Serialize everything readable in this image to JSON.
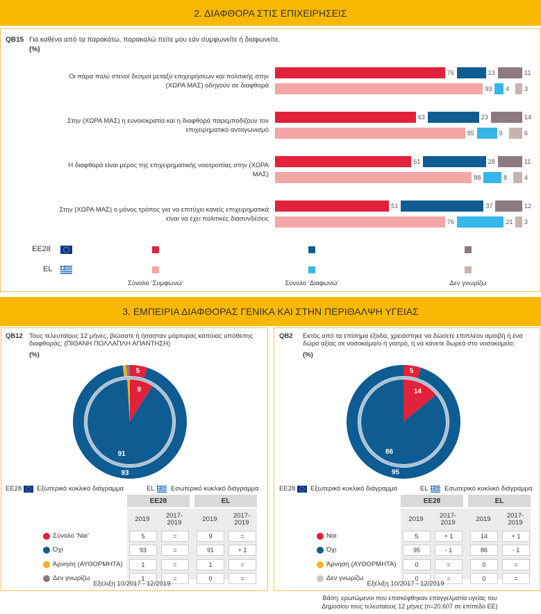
{
  "section_titles": [
    "2. ΔΙΑΦΘΟΡΑ ΣΤΙΣ ΕΠΙΧΕΙΡΗΣΕΙΣ",
    "3. ΕΜΠΕΙΡΙΑ ΔΙΑΦΘΟΡΑΣ ΓΕΝΙΚΑ ΚΑΙ ΣΤΗΝ ΠΕΡΙΘΑΛΨΗ ΥΓΕΙΑΣ"
  ],
  "base_note": "Βάση: ερωτώμενοι που επισκέφθηκαν επαγγελματία υγείας του Δημοσίου τους τελευταίους 12 μήνες (n=20.607 σε επίπεδο ΕΕ)",
  "chart_data": [
    {
      "type": "bar",
      "orientation": "horizontal",
      "question_code": "QB15",
      "question": "Για καθένα από τα παρακάτω, παρακαλώ πείτε μου εάν συμφωνείτε ή διαφωνείτε.",
      "unit_label": "(%)",
      "categories": [
        "Οι πάρα πολύ στενοί δεσμοί μεταξύ επιχειρήσεων και πολιτικής στην (ΧΩΡΑ ΜΑΣ) οδηγούν σε διαφθορά",
        "Στην (ΧΩΡΑ ΜΑΣ) η ευνοιοκρατία και η διαφθορά παρεμποδίζουν τον επιχειρηματικό ανταγωνισμό",
        "Η διαφθορά είναι μέρος της επιχειρηματικής νοοτροπίας στην (ΧΩΡΑ ΜΑΣ)",
        "Στην (ΧΩΡΑ ΜΑΣ) ο μόνος τρόπος για να επιτύχει κανείς επιχειρηματικά είναι να έχει πολιτικές διασυνδέσεις"
      ],
      "groups": [
        "EE28",
        "EL"
      ],
      "series": [
        {
          "name": "Σύνολο ‘Συμφωνώ’",
          "colors": [
            "#e2213a",
            "#f4a6a6"
          ],
          "values": [
            [
              76,
              63,
              61,
              51
            ],
            [
              93,
              85,
              88,
              76
            ]
          ]
        },
        {
          "name": "Σύνολο ‘Διαφωνώ’",
          "colors": [
            "#0e5c91",
            "#35b7ea"
          ],
          "values": [
            [
              13,
              23,
              28,
              37
            ],
            [
              4,
              9,
              8,
              21
            ]
          ]
        },
        {
          "name": "Δεν γνωρίζω",
          "colors": [
            "#8c7a7e",
            "#c6b4b0"
          ],
          "values": [
            [
              11,
              14,
              11,
              12
            ],
            [
              3,
              6,
              4,
              3
            ]
          ]
        }
      ]
    },
    {
      "type": "pie",
      "question_code": "QB12",
      "question": "Τους τελευταίους 12 μήνες, βιώσατε ή ήσασταν μάρτυρας κάποιας υπόθεσης διαφθοράς; (ΠΙΘΑΝΗ ΠΟΛΛΑΠΛΗ ΑΠΑΝΤΗΣΗ)",
      "unit_label": "(%)",
      "categories": [
        "Σύνολο ‘Ναι’",
        "Όχι",
        "Άρνηση (ΑΥΘΟΡΜΗΤΑ)",
        "Δεν γνωρίζω"
      ],
      "colors": [
        "#e2213a",
        "#0e5c91",
        "#f0b323",
        "#8c7a7e"
      ],
      "table_columns": [
        "2019",
        "2017-2019"
      ],
      "series": [
        {
          "name": "EE28",
          "description": "Εξωτερικό κυκλικό διάγραμμα",
          "values": [
            5,
            93,
            1,
            1
          ],
          "changes": [
            "=",
            "=",
            "=",
            "="
          ]
        },
        {
          "name": "EL",
          "description": "Εσωτερικό κυκλικό διάγραμμα",
          "values": [
            9,
            91,
            1,
            0
          ],
          "changes": [
            "=",
            "+ 1",
            "=",
            "="
          ]
        }
      ],
      "footnote": "Εξέλιξη 10/2017 - 12/2019"
    },
    {
      "type": "pie",
      "question_code": "QB2",
      "question": "Εκτός από τα επίσημα έξοδα, χρειάστηκε να δώσετε επιπλέον αμοιβή ή ένα δώρο αξίας σε νοσοκόμα/ο ή γιατρό, ή να κάνετε δωρεά στο νοσοκομείο;",
      "unit_label": "(%)",
      "categories": [
        "Ναι",
        "Όχι",
        "Άρνηση (ΑΥΘΟΡΜΗΤΑ)",
        "Δεν γνωρίζω"
      ],
      "colors": [
        "#e2213a",
        "#0e5c91",
        "#f0b323",
        "#c8c8c8"
      ],
      "table_columns": [
        "2019",
        "2017-2019"
      ],
      "series": [
        {
          "name": "EE28",
          "description": "Εξωτερικό κυκλικό διάγραμμα",
          "values": [
            5,
            95,
            0,
            0
          ],
          "changes": [
            "+ 1",
            "- 1",
            "=",
            "="
          ]
        },
        {
          "name": "EL",
          "description": "Εσωτερικό κυκλικό διάγραμμα",
          "values": [
            14,
            86,
            0,
            0
          ],
          "changes": [
            "+ 1",
            "- 1",
            "=",
            "="
          ]
        }
      ],
      "footnote": "Εξέλιξη 10/2017 - 12/2019"
    }
  ]
}
